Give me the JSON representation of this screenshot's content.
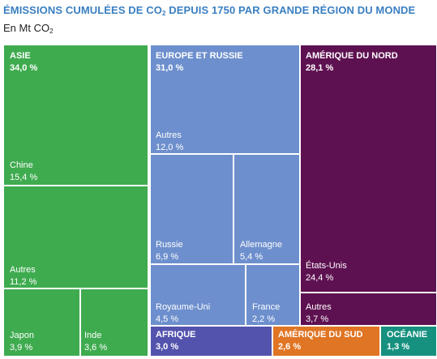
{
  "title_parts": [
    "ÉMISSIONS CUMULÉES DE CO",
    "2",
    " DEPUIS 1750 PAR GRANDE RÉGION DU MONDE"
  ],
  "unit_parts": [
    "En Mt CO",
    "2"
  ],
  "colors": {
    "asie": "#3fab4f",
    "europe": "#6d8fcd",
    "amerique_nord": "#5e1151",
    "afrique": "#5353ae",
    "amerique_sud": "#e07524",
    "oceanie": "#17917f",
    "border": "#ffffff"
  },
  "chart_data": {
    "type": "treemap",
    "unit": "%",
    "regions": [
      {
        "name": "ASIE",
        "value": 34.0,
        "value_label": "34,0 %",
        "children": [
          {
            "name": "Chine",
            "value": 15.4,
            "value_label": "15,4 %"
          },
          {
            "name": "Autres",
            "value": 11.2,
            "value_label": "11,2 %"
          },
          {
            "name": "Japon",
            "value": 3.9,
            "value_label": "3,9 %"
          },
          {
            "name": "Inde",
            "value": 3.6,
            "value_label": "3,6 %"
          }
        ]
      },
      {
        "name": "EUROPE ET RUSSIE",
        "value": 31.0,
        "value_label": "31,0 %",
        "children": [
          {
            "name": "Autres",
            "value": 12.0,
            "value_label": "12,0 %"
          },
          {
            "name": "Russie",
            "value": 6.9,
            "value_label": "6,9 %"
          },
          {
            "name": "Allemagne",
            "value": 5.4,
            "value_label": "5,4 %"
          },
          {
            "name": "Royaume-Uni",
            "value": 4.5,
            "value_label": "4,5 %"
          },
          {
            "name": "France",
            "value": 2.2,
            "value_label": "2,2 %"
          }
        ]
      },
      {
        "name": "AMÉRIQUE DU NORD",
        "value": 28.1,
        "value_label": "28,1 %",
        "children": [
          {
            "name": "États-Unis",
            "value": 24.4,
            "value_label": "24,4 %"
          },
          {
            "name": "Autres",
            "value": 3.7,
            "value_label": "3,7 %"
          }
        ]
      },
      {
        "name": "AFRIQUE",
        "value": 3.0,
        "value_label": "3,0 %",
        "children": []
      },
      {
        "name": "AMÉRIQUE DU SUD",
        "value": 2.6,
        "value_label": "2,6 %",
        "children": []
      },
      {
        "name": "OCÉANIE",
        "value": 1.3,
        "value_label": "1,3 %",
        "children": []
      }
    ]
  }
}
